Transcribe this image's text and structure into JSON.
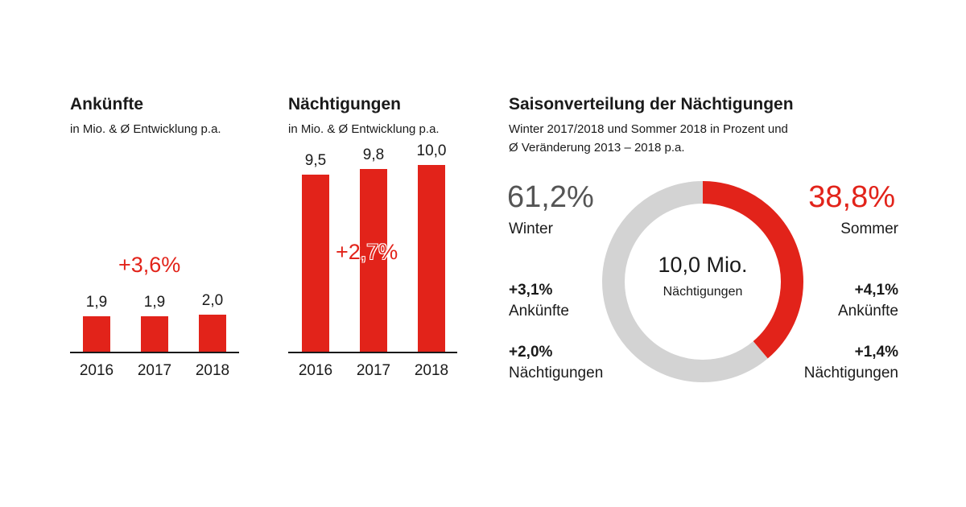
{
  "panels": {
    "arrivals": {
      "title": "Ankünfte",
      "subtitle": "in Mio. & Ø Entwicklung p.a.",
      "growth": "+3,6%"
    },
    "nights": {
      "title": "Nächtigungen",
      "subtitle": "in Mio. & Ø Entwicklung p.a.",
      "growth": "+2,7%"
    },
    "season": {
      "title": "Saisonverteilung der Nächtigungen",
      "subtitle_line1": "Winter 2017/2018 und Sommer 2018 in Prozent und",
      "subtitle_line2": "Ø Veränderung 2013 – 2018 p.a.",
      "center_value": "10,0 Mio.",
      "center_label": "Nächtigungen",
      "winter": {
        "pct": "61,2%",
        "label": "Winter",
        "arrivals_change": "+3,1%",
        "arrivals_label": "Ankünfte",
        "nights_change": "+2,0%",
        "nights_label": "Nächtigungen"
      },
      "summer": {
        "pct": "38,8%",
        "label": "Sommer",
        "arrivals_change": "+4,1%",
        "arrivals_label": "Ankünfte",
        "nights_change": "+1,4%",
        "nights_label": "Nächtigungen"
      }
    }
  },
  "colors": {
    "accent": "#e2231a",
    "winter": "#d3d3d3",
    "text": "#1a1a1a",
    "winter_pct": "#555555"
  },
  "chart_data": [
    {
      "type": "bar",
      "title": "Ankünfte",
      "categories": [
        "2016",
        "2017",
        "2018"
      ],
      "values": [
        1.9,
        1.9,
        2.0
      ],
      "value_labels": [
        "1,9",
        "1,9",
        "2,0"
      ],
      "ylim": [
        0,
        10.5
      ]
    },
    {
      "type": "bar",
      "title": "Nächtigungen",
      "categories": [
        "2016",
        "2017",
        "2018"
      ],
      "values": [
        9.5,
        9.8,
        10.0
      ],
      "value_labels": [
        "9,5",
        "9,8",
        "10,0"
      ],
      "ylim": [
        0,
        10.5
      ]
    },
    {
      "type": "pie",
      "title": "Saisonverteilung der Nächtigungen",
      "categories": [
        "Winter",
        "Sommer"
      ],
      "values": [
        61.2,
        38.8
      ],
      "value_labels": [
        "61,2%",
        "38,8%"
      ]
    }
  ]
}
